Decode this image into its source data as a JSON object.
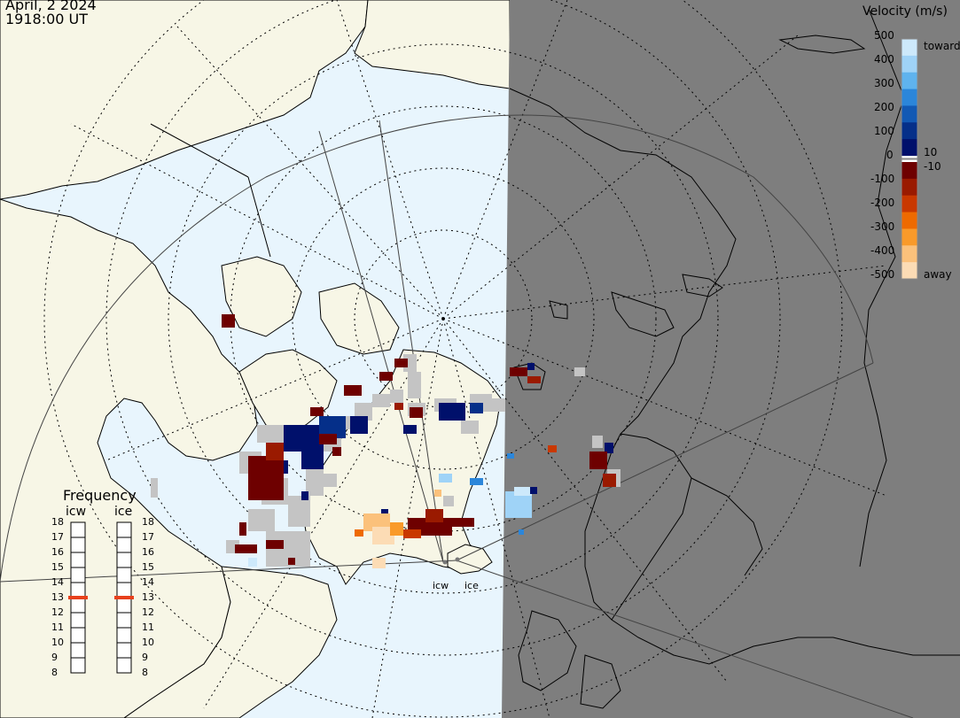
{
  "header": {
    "date": "April, 2 2024",
    "time": "1918:00 UT"
  },
  "frequency_panel": {
    "title": "Frequency",
    "stations": [
      {
        "label": "icw",
        "value_mhz": 13
      },
      {
        "label": "ice",
        "value_mhz": 13
      }
    ],
    "ticks": [
      "18",
      "17",
      "16",
      "15",
      "14",
      "13",
      "12",
      "11",
      "10",
      "9",
      "8"
    ],
    "marker_color": "#e8401c"
  },
  "velocity_legend": {
    "title": "Velocity (m/s)",
    "ticks_toward": [
      "500",
      "400",
      "300",
      "200",
      "100",
      "0"
    ],
    "ticks_away": [
      "-100",
      "-200",
      "-300",
      "-400",
      "-500"
    ],
    "threshold_pos": "10",
    "threshold_neg": "-10",
    "label_toward": "toward",
    "label_away": "away",
    "colors_toward": [
      "#cde9fb",
      "#9fd3f7",
      "#5fb3ee",
      "#2b86da",
      "#1259b4",
      "#052f89",
      "#00106b"
    ],
    "colors_away": [
      "#6e0000",
      "#9a1a00",
      "#c93800",
      "#ee6a00",
      "#f99a2a",
      "#fbc17b",
      "#fcdcb5"
    ]
  },
  "sites": [
    {
      "label": "icw"
    },
    {
      "label": "ice"
    }
  ],
  "colors": {
    "ocean": "#e8f5fd",
    "land": "#f7f6e6",
    "night": "#7e7e7e",
    "ground_scatter": "#c4c4c4"
  }
}
